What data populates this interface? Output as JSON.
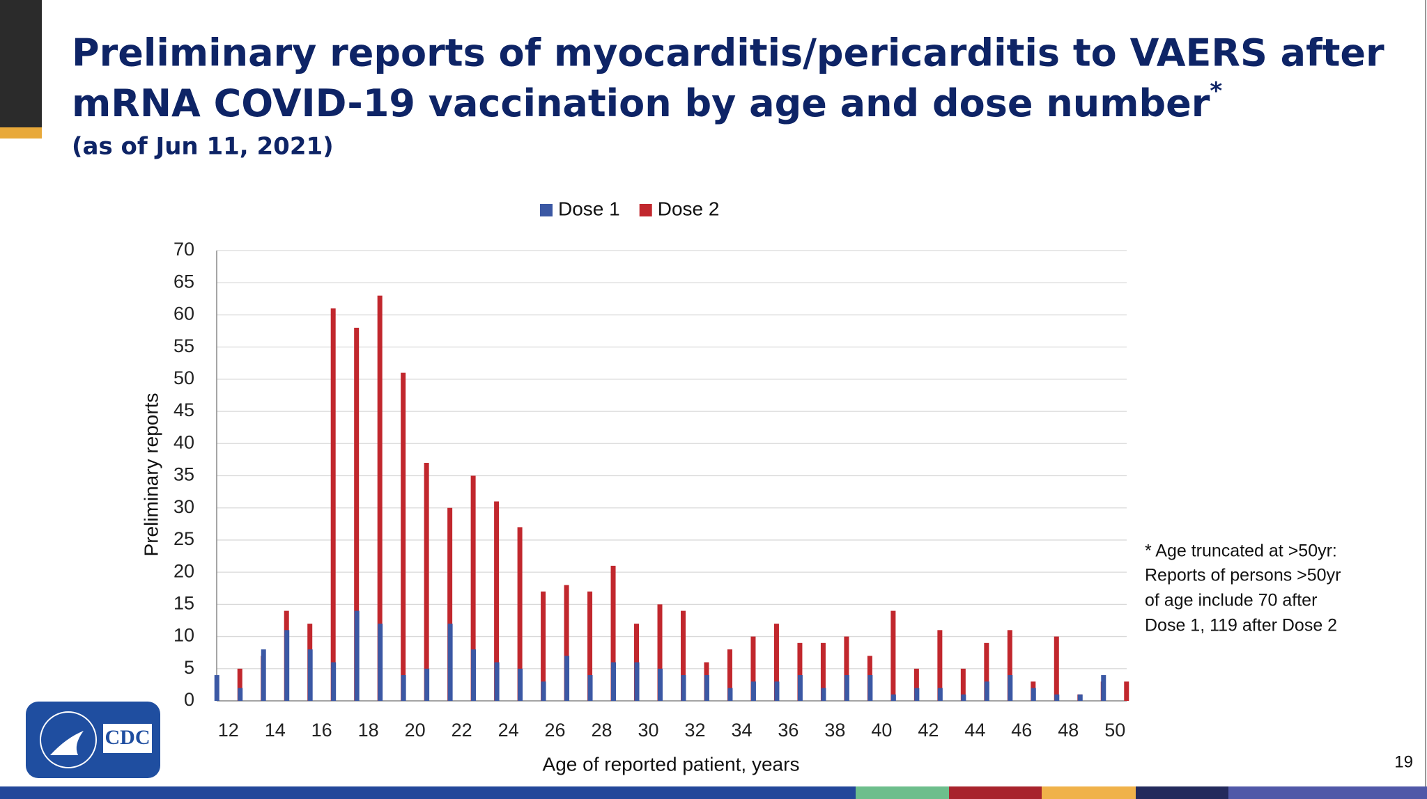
{
  "header": {
    "title": [
      "Preliminary reports of myocarditis/pericarditis to VAERS after",
      "mRNA COVID-19 vaccination by age and dose number"
    ],
    "title_mark": "*",
    "subtitle": "(as of Jun 11, 2021)"
  },
  "footnote": [
    "* Age truncated at >50yr:",
    "Reports of persons >50yr",
    "of age include 70 after",
    "Dose 1, 119 after Dose 2"
  ],
  "logo": "CDC",
  "page_number": "19",
  "chart_data": {
    "type": "bar",
    "x_label": "Age of reported patient, years",
    "y_label": "Preliminary reports",
    "categories": [
      "12",
      null,
      "14",
      null,
      "16",
      null,
      "18",
      null,
      "20",
      null,
      "22",
      null,
      "24",
      null,
      "26",
      null,
      "28",
      null,
      "30",
      null,
      "32",
      null,
      "34",
      null,
      "36",
      null,
      "38",
      null,
      "40",
      null,
      "42",
      null,
      "44",
      null,
      "46",
      null,
      "48",
      null,
      "50"
    ],
    "series": [
      {
        "name": "Dose 1",
        "color": "#3b58a4",
        "values": [
          4,
          2,
          8,
          11,
          8,
          6,
          14,
          12,
          4,
          5,
          12,
          8,
          6,
          5,
          3,
          7,
          4,
          6,
          6,
          5,
          4,
          4,
          2,
          3,
          3,
          4,
          2,
          4,
          4,
          1,
          2,
          2,
          1,
          3,
          4,
          2,
          1,
          1,
          4
        ]
      },
      {
        "name": "Dose 2",
        "color": "#c1272d",
        "values": [
          5,
          7,
          14,
          12,
          61,
          58,
          63,
          51,
          37,
          30,
          35,
          31,
          27,
          17,
          18,
          17,
          21,
          12,
          15,
          14,
          6,
          8,
          10,
          12,
          9,
          9,
          10,
          7,
          14,
          5,
          11,
          5,
          9,
          11,
          3,
          10,
          1,
          3,
          3
        ]
      }
    ],
    "ylim": [
      0,
      70
    ],
    "yticks": [
      0,
      5,
      10,
      15,
      20,
      25,
      30,
      35,
      40,
      45,
      50,
      55,
      60,
      65,
      70
    ],
    "grid": true,
    "legend": "top"
  }
}
